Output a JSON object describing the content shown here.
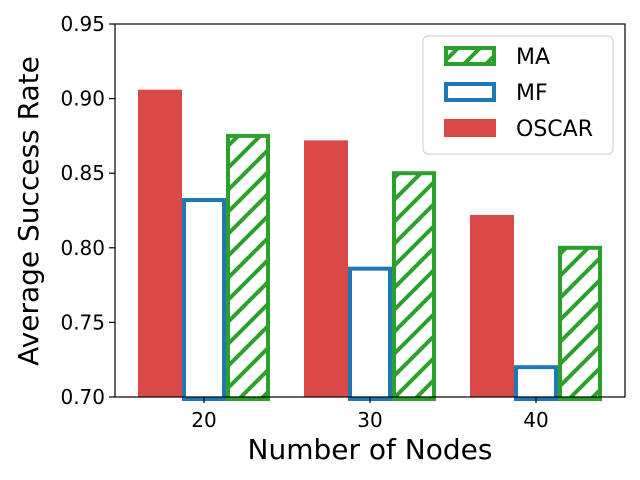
{
  "chart_data": {
    "type": "bar",
    "title": "",
    "xlabel": "Number of Nodes",
    "ylabel": "Average Success Rate",
    "categories": [
      "20",
      "30",
      "40"
    ],
    "ylim": [
      0.7,
      0.95
    ],
    "yticks": [
      "0.70",
      "0.75",
      "0.80",
      "0.85",
      "0.90",
      "0.95"
    ],
    "grid": false,
    "legend_position": "top-right",
    "series": [
      {
        "name": "OSCAR",
        "values": [
          0.906,
          0.872,
          0.822
        ],
        "color": "#db4848",
        "style": "solid"
      },
      {
        "name": "MF",
        "values": [
          0.832,
          0.786,
          0.72
        ],
        "color": "#1f77b4",
        "style": "outline"
      },
      {
        "name": "MA",
        "values": [
          0.875,
          0.85,
          0.8
        ],
        "color": "#2ca02c",
        "style": "hatch"
      }
    ],
    "legend_order": [
      "MA",
      "MF",
      "OSCAR"
    ]
  }
}
